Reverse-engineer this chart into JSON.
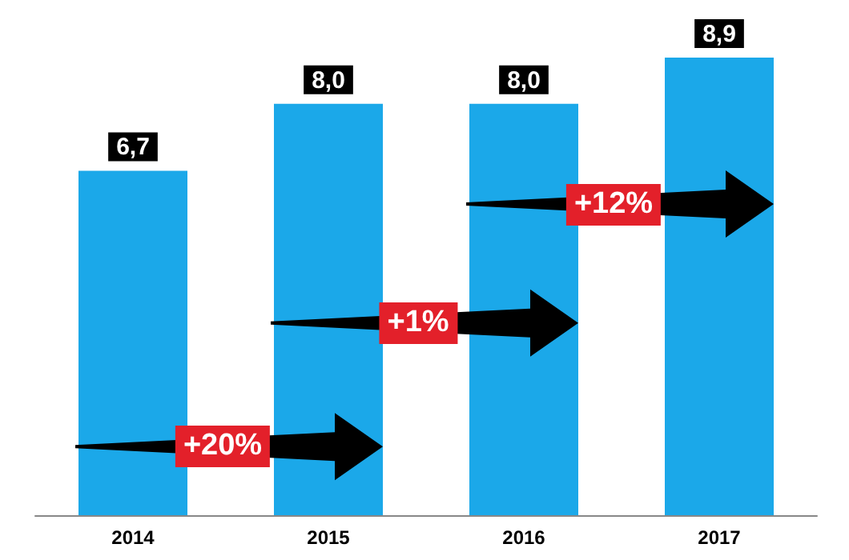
{
  "chart_data": {
    "type": "bar",
    "categories": [
      "2014",
      "2015",
      "2016",
      "2017"
    ],
    "values": [
      6.7,
      8.0,
      8.0,
      8.9
    ],
    "value_labels": [
      "6,7",
      "8,0",
      "8,0",
      "8,9"
    ],
    "color": "#1ba8e9",
    "tick_labels": "x",
    "annotations": [
      "+20%",
      "+1%",
      "+12%"
    ]
  }
}
